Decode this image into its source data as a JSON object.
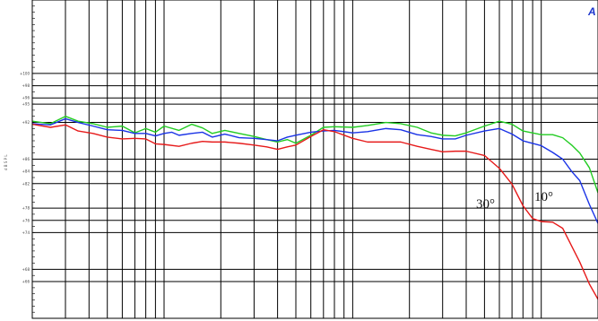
{
  "brand_text": "A",
  "chart_data": {
    "type": "line",
    "title": "",
    "xlabel": "",
    "ylabel": "d B S P L",
    "x_scale": "log",
    "xlim": [
      20,
      20000
    ],
    "ylim": [
      60,
      112
    ],
    "y_ticks": [
      {
        "value": 100,
        "label": "+100"
      },
      {
        "value": 98,
        "label": "+98"
      },
      {
        "value": 96,
        "label": "+96"
      },
      {
        "value": 95,
        "label": "+95"
      },
      {
        "value": 92,
        "label": "+92"
      },
      {
        "value": 86,
        "label": "+86"
      },
      {
        "value": 84,
        "label": "+84"
      },
      {
        "value": 82,
        "label": "+82"
      },
      {
        "value": 78,
        "label": "+78"
      },
      {
        "value": 76,
        "label": "+76"
      },
      {
        "value": 74,
        "label": "+74"
      },
      {
        "value": 68,
        "label": "+68"
      },
      {
        "value": 66,
        "label": "+66"
      }
    ],
    "grid": true,
    "series": [
      {
        "color": "#22cc22",
        "points": [
          [
            20,
            92.2
          ],
          [
            25,
            91.8
          ],
          [
            30,
            93.0
          ],
          [
            35,
            92.2
          ],
          [
            42,
            91.8
          ],
          [
            50,
            91.2
          ],
          [
            60,
            91.4
          ],
          [
            70,
            90.3
          ],
          [
            80,
            91.0
          ],
          [
            90,
            90.4
          ],
          [
            100,
            91.4
          ],
          [
            120,
            90.7
          ],
          [
            140,
            91.7
          ],
          [
            160,
            91.1
          ],
          [
            180,
            90.2
          ],
          [
            210,
            90.7
          ],
          [
            250,
            90.2
          ],
          [
            300,
            89.7
          ],
          [
            350,
            89.2
          ],
          [
            400,
            88.8
          ],
          [
            450,
            89.2
          ],
          [
            500,
            88.6
          ],
          [
            600,
            89.9
          ],
          [
            700,
            91.2
          ],
          [
            800,
            91.3
          ],
          [
            1000,
            91.2
          ],
          [
            1200,
            91.5
          ],
          [
            1500,
            92.0
          ],
          [
            1800,
            91.8
          ],
          [
            2200,
            91.2
          ],
          [
            2600,
            90.3
          ],
          [
            3000,
            89.9
          ],
          [
            3500,
            89.8
          ],
          [
            4000,
            90.3
          ],
          [
            5000,
            91.4
          ],
          [
            6000,
            92.2
          ],
          [
            7000,
            91.7
          ],
          [
            8000,
            90.6
          ],
          [
            10000,
            90.0
          ],
          [
            11500,
            90.0
          ],
          [
            13000,
            89.5
          ],
          [
            14500,
            88.3
          ],
          [
            16000,
            87.0
          ],
          [
            18000,
            84.6
          ],
          [
            20000,
            80.5
          ]
        ]
      },
      {
        "color": "#1a33e6",
        "points": [
          [
            20,
            91.8
          ],
          [
            25,
            91.6
          ],
          [
            30,
            92.6
          ],
          [
            35,
            92.0
          ],
          [
            42,
            91.4
          ],
          [
            50,
            90.8
          ],
          [
            60,
            90.7
          ],
          [
            70,
            90.2
          ],
          [
            80,
            90.2
          ],
          [
            90,
            89.8
          ],
          [
            100,
            90.2
          ],
          [
            110,
            90.4
          ],
          [
            120,
            89.9
          ],
          [
            140,
            90.2
          ],
          [
            160,
            90.4
          ],
          [
            180,
            89.6
          ],
          [
            210,
            90.1
          ],
          [
            250,
            89.5
          ],
          [
            300,
            89.4
          ],
          [
            350,
            89.2
          ],
          [
            400,
            89.0
          ],
          [
            450,
            89.6
          ],
          [
            500,
            89.9
          ],
          [
            600,
            90.4
          ],
          [
            700,
            90.6
          ],
          [
            800,
            90.7
          ],
          [
            1000,
            90.3
          ],
          [
            1200,
            90.5
          ],
          [
            1500,
            91.0
          ],
          [
            1800,
            90.8
          ],
          [
            2200,
            90.0
          ],
          [
            2600,
            89.7
          ],
          [
            3000,
            89.3
          ],
          [
            3500,
            89.3
          ],
          [
            4000,
            89.9
          ],
          [
            5000,
            90.6
          ],
          [
            6000,
            91.0
          ],
          [
            7000,
            90.1
          ],
          [
            8000,
            89.0
          ],
          [
            10000,
            88.2
          ],
          [
            11500,
            87.1
          ],
          [
            13000,
            86.0
          ],
          [
            14500,
            84.0
          ],
          [
            16000,
            82.5
          ],
          [
            18000,
            78.6
          ],
          [
            20000,
            75.5
          ]
        ]
      },
      {
        "color": "#e61a1a",
        "points": [
          [
            20,
            91.7
          ],
          [
            25,
            91.2
          ],
          [
            30,
            91.6
          ],
          [
            35,
            90.6
          ],
          [
            42,
            90.2
          ],
          [
            50,
            89.6
          ],
          [
            60,
            89.3
          ],
          [
            70,
            89.4
          ],
          [
            80,
            89.3
          ],
          [
            90,
            88.5
          ],
          [
            100,
            88.4
          ],
          [
            120,
            88.1
          ],
          [
            140,
            88.6
          ],
          [
            160,
            88.9
          ],
          [
            180,
            88.8
          ],
          [
            210,
            88.8
          ],
          [
            250,
            88.6
          ],
          [
            300,
            88.3
          ],
          [
            350,
            88.0
          ],
          [
            400,
            87.6
          ],
          [
            450,
            88.0
          ],
          [
            500,
            88.3
          ],
          [
            600,
            89.7
          ],
          [
            700,
            90.8
          ],
          [
            800,
            90.5
          ],
          [
            1000,
            89.4
          ],
          [
            1200,
            88.8
          ],
          [
            1500,
            88.8
          ],
          [
            1800,
            88.8
          ],
          [
            2200,
            88.1
          ],
          [
            2600,
            87.6
          ],
          [
            3000,
            87.2
          ],
          [
            3500,
            87.3
          ],
          [
            4000,
            87.3
          ],
          [
            5000,
            86.6
          ],
          [
            6000,
            84.5
          ],
          [
            7000,
            81.9
          ],
          [
            8000,
            78.4
          ],
          [
            9000,
            76.3
          ],
          [
            10000,
            75.8
          ],
          [
            11500,
            75.7
          ],
          [
            13000,
            74.7
          ],
          [
            14500,
            71.8
          ],
          [
            16000,
            69.2
          ],
          [
            18000,
            65.6
          ],
          [
            20000,
            63.1
          ]
        ]
      }
    ],
    "annotations": [
      "30°",
      "10°"
    ]
  }
}
